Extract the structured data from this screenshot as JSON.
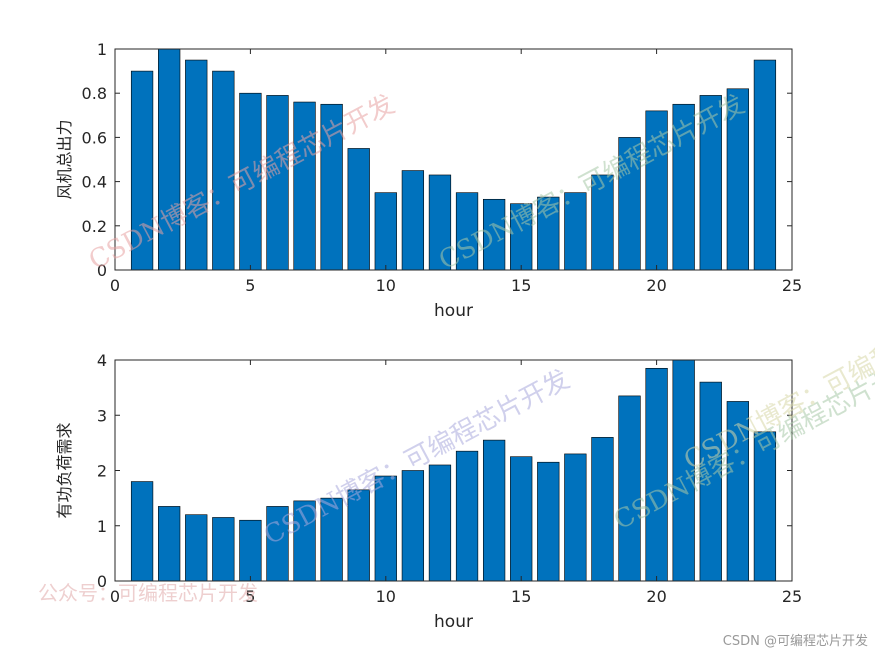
{
  "colors": {
    "bar": "#0072BD",
    "bar_edge": "#000000",
    "axis": "#262626"
  },
  "chart_data": [
    {
      "type": "bar",
      "x": [
        1,
        2,
        3,
        4,
        5,
        6,
        7,
        8,
        9,
        10,
        11,
        12,
        13,
        14,
        15,
        16,
        17,
        18,
        19,
        20,
        21,
        22,
        23,
        24
      ],
      "values": [
        0.9,
        1.0,
        0.95,
        0.9,
        0.8,
        0.79,
        0.76,
        0.75,
        0.55,
        0.35,
        0.45,
        0.43,
        0.35,
        0.32,
        0.3,
        0.33,
        0.35,
        0.43,
        0.6,
        0.72,
        0.75,
        0.79,
        0.82,
        0.95
      ],
      "xlim": [
        0,
        25
      ],
      "ylim": [
        0,
        1
      ],
      "xticks": [
        "0",
        "5",
        "10",
        "15",
        "20",
        "25"
      ],
      "yticks": [
        "0",
        "0.2",
        "0.4",
        "0.6",
        "0.8",
        "1"
      ],
      "xlabel": "hour",
      "ylabel": "风机总出力",
      "grid": false
    },
    {
      "type": "bar",
      "x": [
        1,
        2,
        3,
        4,
        5,
        6,
        7,
        8,
        9,
        10,
        11,
        12,
        13,
        14,
        15,
        16,
        17,
        18,
        19,
        20,
        21,
        22,
        23,
        24
      ],
      "values": [
        1.8,
        1.35,
        1.2,
        1.15,
        1.1,
        1.35,
        1.45,
        1.5,
        1.65,
        1.9,
        2.0,
        2.1,
        2.35,
        2.55,
        2.25,
        2.15,
        2.3,
        2.6,
        3.35,
        3.85,
        4.0,
        3.6,
        3.25,
        2.7
      ],
      "xlim": [
        0,
        25
      ],
      "ylim": [
        0,
        4
      ],
      "xticks": [
        "0",
        "5",
        "10",
        "15",
        "20",
        "25"
      ],
      "yticks": [
        "0",
        "1",
        "2",
        "3",
        "4"
      ],
      "xlabel": "hour",
      "ylabel": "有功负荷需求",
      "grid": false
    }
  ],
  "watermarks": {
    "csdn_blog_1": "CSDN博客：可编程芯片开发",
    "csdn_blog_2": "CSDN博客：可编程芯片开发",
    "csdn_blog_3": "CSDN博客：可编程芯片开发",
    "csdn_blog_4": "CSDN博客：可编程芯片开发",
    "csdn_blog_5": "CSDN博客：可编程芯片开发",
    "public_account": "公众号：可编程芯片开发",
    "footer": "CSDN @可编程芯片开发"
  }
}
